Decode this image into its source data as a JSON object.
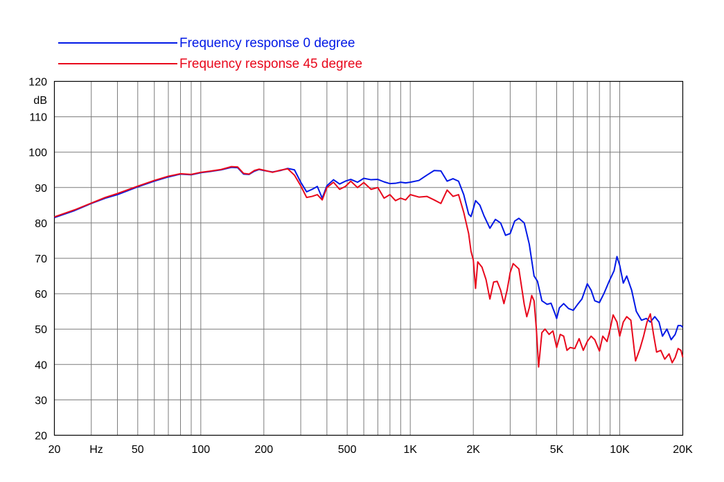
{
  "chart_data": {
    "type": "line",
    "x_scale": "log",
    "xlim": [
      20,
      20000
    ],
    "ylim": [
      20,
      120
    ],
    "ylabel": "dB",
    "xlabel": "Hz",
    "grid": true,
    "legend_position": "top-left",
    "x_ticks": [
      {
        "value": 20,
        "label": "20"
      },
      {
        "value": 50,
        "label": "50"
      },
      {
        "value": 100,
        "label": "100"
      },
      {
        "value": 200,
        "label": "200"
      },
      {
        "value": 500,
        "label": "500"
      },
      {
        "value": 1000,
        "label": "1K"
      },
      {
        "value": 2000,
        "label": "2K"
      },
      {
        "value": 5000,
        "label": "5K"
      },
      {
        "value": 10000,
        "label": "10K"
      },
      {
        "value": 20000,
        "label": "20K"
      }
    ],
    "y_ticks": [
      20,
      30,
      40,
      50,
      60,
      70,
      80,
      90,
      100,
      110,
      120
    ],
    "series": [
      {
        "name": "Frequency response 0 degree",
        "color": "#0018e6",
        "points": [
          [
            20,
            81.5
          ],
          [
            25,
            83.5
          ],
          [
            30,
            85.5
          ],
          [
            35,
            87
          ],
          [
            40,
            88
          ],
          [
            50,
            90.2
          ],
          [
            60,
            91.8
          ],
          [
            70,
            93
          ],
          [
            80,
            93.8
          ],
          [
            90,
            93.6
          ],
          [
            100,
            94.2
          ],
          [
            110,
            94.5
          ],
          [
            125,
            95
          ],
          [
            140,
            95.7
          ],
          [
            150,
            95.6
          ],
          [
            160,
            93.8
          ],
          [
            170,
            93.7
          ],
          [
            180,
            94.6
          ],
          [
            190,
            95.1
          ],
          [
            200,
            94.8
          ],
          [
            220,
            94.4
          ],
          [
            240,
            94.8
          ],
          [
            260,
            95.4
          ],
          [
            280,
            95
          ],
          [
            300,
            91.5
          ],
          [
            320,
            88.8
          ],
          [
            340,
            89.5
          ],
          [
            360,
            90.3
          ],
          [
            380,
            87
          ],
          [
            400,
            90.5
          ],
          [
            430,
            92.2
          ],
          [
            460,
            91
          ],
          [
            490,
            91.8
          ],
          [
            520,
            92.3
          ],
          [
            560,
            91.5
          ],
          [
            600,
            92.6
          ],
          [
            650,
            92.2
          ],
          [
            700,
            92.3
          ],
          [
            750,
            91.6
          ],
          [
            800,
            91.1
          ],
          [
            850,
            91.2
          ],
          [
            900,
            91.5
          ],
          [
            950,
            91.3
          ],
          [
            1000,
            91.5
          ],
          [
            1100,
            92
          ],
          [
            1200,
            93.5
          ],
          [
            1300,
            94.8
          ],
          [
            1400,
            94.7
          ],
          [
            1500,
            91.8
          ],
          [
            1600,
            92.5
          ],
          [
            1700,
            91.8
          ],
          [
            1800,
            88
          ],
          [
            1900,
            82.5
          ],
          [
            1950,
            81.8
          ],
          [
            2000,
            84
          ],
          [
            2050,
            86.3
          ],
          [
            2150,
            85
          ],
          [
            2250,
            82
          ],
          [
            2400,
            78.5
          ],
          [
            2550,
            81
          ],
          [
            2700,
            80
          ],
          [
            2850,
            76.5
          ],
          [
            3000,
            77
          ],
          [
            3150,
            80.5
          ],
          [
            3300,
            81.3
          ],
          [
            3500,
            80
          ],
          [
            3700,
            74
          ],
          [
            3900,
            65
          ],
          [
            4050,
            63.5
          ],
          [
            4250,
            58
          ],
          [
            4500,
            57
          ],
          [
            4700,
            57.3
          ],
          [
            4900,
            54.5
          ],
          [
            5000,
            53
          ],
          [
            5150,
            56
          ],
          [
            5400,
            57.2
          ],
          [
            5700,
            55.8
          ],
          [
            6000,
            55.3
          ],
          [
            6300,
            57
          ],
          [
            6600,
            58.5
          ],
          [
            7000,
            62.8
          ],
          [
            7300,
            61
          ],
          [
            7600,
            58
          ],
          [
            8000,
            57.5
          ],
          [
            8400,
            60
          ],
          [
            8900,
            63.5
          ],
          [
            9400,
            66.5
          ],
          [
            9700,
            70.5
          ],
          [
            10000,
            68
          ],
          [
            10400,
            63
          ],
          [
            10800,
            65
          ],
          [
            11400,
            61
          ],
          [
            12000,
            55
          ],
          [
            12700,
            52.5
          ],
          [
            13400,
            53
          ],
          [
            14000,
            52
          ],
          [
            14700,
            53.5
          ],
          [
            15400,
            52
          ],
          [
            16000,
            48
          ],
          [
            16800,
            50
          ],
          [
            17600,
            47
          ],
          [
            18400,
            48.5
          ],
          [
            19000,
            51
          ],
          [
            19600,
            51
          ],
          [
            20000,
            50.5
          ]
        ]
      },
      {
        "name": "Frequency response 45 degree",
        "color": "#e8081c",
        "points": [
          [
            20,
            81.7
          ],
          [
            25,
            83.7
          ],
          [
            30,
            85.6
          ],
          [
            35,
            87.2
          ],
          [
            40,
            88.3
          ],
          [
            50,
            90.4
          ],
          [
            60,
            92
          ],
          [
            70,
            93.2
          ],
          [
            80,
            93.9
          ],
          [
            90,
            93.7
          ],
          [
            100,
            94.3
          ],
          [
            110,
            94.6
          ],
          [
            125,
            95.1
          ],
          [
            140,
            95.9
          ],
          [
            150,
            95.8
          ],
          [
            160,
            94
          ],
          [
            170,
            93.8
          ],
          [
            180,
            94.8
          ],
          [
            190,
            95.2
          ],
          [
            200,
            94.9
          ],
          [
            220,
            94.3
          ],
          [
            240,
            94.9
          ],
          [
            260,
            95.3
          ],
          [
            280,
            93.5
          ],
          [
            300,
            90.5
          ],
          [
            320,
            87.2
          ],
          [
            340,
            87.5
          ],
          [
            360,
            88
          ],
          [
            380,
            86.5
          ],
          [
            400,
            90
          ],
          [
            430,
            91.5
          ],
          [
            460,
            89.5
          ],
          [
            490,
            90.3
          ],
          [
            520,
            91.8
          ],
          [
            560,
            90
          ],
          [
            600,
            91.4
          ],
          [
            650,
            89.5
          ],
          [
            700,
            90
          ],
          [
            750,
            87
          ],
          [
            800,
            88
          ],
          [
            850,
            86.3
          ],
          [
            900,
            87
          ],
          [
            950,
            86.5
          ],
          [
            1000,
            88
          ],
          [
            1100,
            87.3
          ],
          [
            1200,
            87.5
          ],
          [
            1300,
            86.5
          ],
          [
            1400,
            85.5
          ],
          [
            1500,
            89.3
          ],
          [
            1600,
            87.5
          ],
          [
            1700,
            88
          ],
          [
            1800,
            83
          ],
          [
            1900,
            77
          ],
          [
            1950,
            72
          ],
          [
            2000,
            69.5
          ],
          [
            2050,
            61.5
          ],
          [
            2100,
            69
          ],
          [
            2200,
            67.5
          ],
          [
            2300,
            64
          ],
          [
            2400,
            58.5
          ],
          [
            2500,
            63.3
          ],
          [
            2600,
            63.5
          ],
          [
            2700,
            61
          ],
          [
            2800,
            57.2
          ],
          [
            2900,
            61
          ],
          [
            3000,
            66
          ],
          [
            3100,
            68.5
          ],
          [
            3300,
            67
          ],
          [
            3500,
            57
          ],
          [
            3600,
            53.5
          ],
          [
            3700,
            56
          ],
          [
            3800,
            59.5
          ],
          [
            3900,
            58
          ],
          [
            4000,
            50
          ],
          [
            4100,
            39.3
          ],
          [
            4250,
            49
          ],
          [
            4400,
            50
          ],
          [
            4600,
            48.5
          ],
          [
            4800,
            49.5
          ],
          [
            5000,
            44.8
          ],
          [
            5200,
            48.5
          ],
          [
            5400,
            48
          ],
          [
            5600,
            44
          ],
          [
            5800,
            44.8
          ],
          [
            6100,
            44.5
          ],
          [
            6400,
            47.3
          ],
          [
            6700,
            44
          ],
          [
            7000,
            46.5
          ],
          [
            7300,
            48
          ],
          [
            7600,
            47
          ],
          [
            8000,
            43.8
          ],
          [
            8300,
            48
          ],
          [
            8700,
            46.5
          ],
          [
            9000,
            50
          ],
          [
            9300,
            54
          ],
          [
            9700,
            52
          ],
          [
            10000,
            48
          ],
          [
            10400,
            52
          ],
          [
            10800,
            53.5
          ],
          [
            11300,
            52.5
          ],
          [
            11900,
            41
          ],
          [
            12500,
            44.5
          ],
          [
            13000,
            48
          ],
          [
            13500,
            52
          ],
          [
            14000,
            54.3
          ],
          [
            14500,
            48.5
          ],
          [
            15000,
            43.5
          ],
          [
            15700,
            44
          ],
          [
            16400,
            41.5
          ],
          [
            17200,
            43
          ],
          [
            17800,
            40.5
          ],
          [
            18400,
            42
          ],
          [
            19000,
            44.5
          ],
          [
            19600,
            44
          ],
          [
            20000,
            42
          ]
        ]
      }
    ]
  }
}
